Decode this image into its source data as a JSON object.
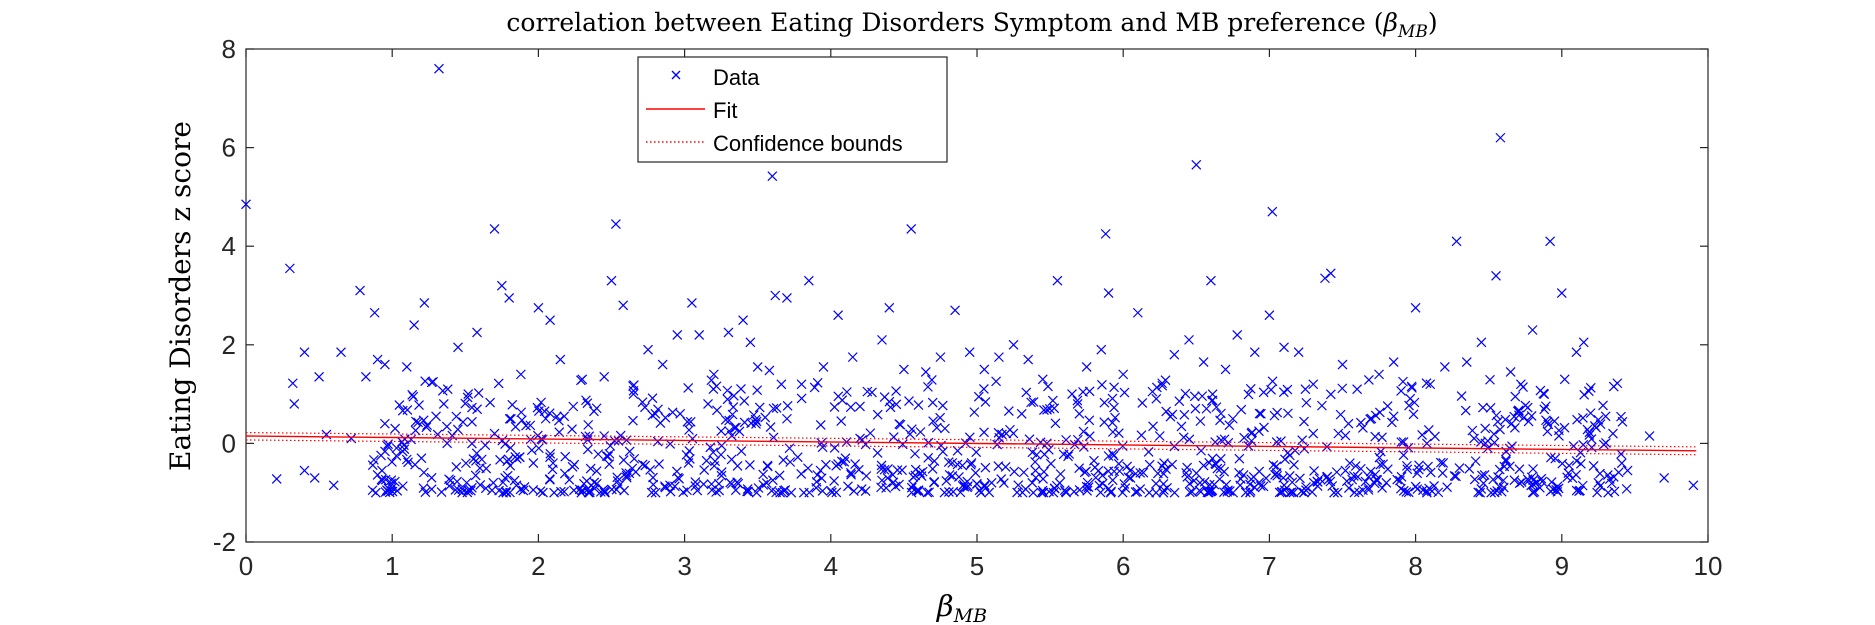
{
  "chart_data": {
    "type": "scatter",
    "title": {
      "prefix": "correlation between Eating Disorders Symptom and MB preference (",
      "symbol": "β",
      "subscript": "MB",
      "suffix": ")"
    },
    "xlabel": {
      "symbol": "β",
      "subscript": "MB"
    },
    "ylabel": "Eating Disorders z score",
    "xlim": [
      0,
      10
    ],
    "ylim": [
      -2,
      8
    ],
    "x_ticks": [
      0,
      1,
      2,
      3,
      4,
      5,
      6,
      7,
      8,
      9,
      10
    ],
    "y_ticks": [
      -2,
      0,
      2,
      4,
      6,
      8
    ],
    "x_tick_labels": [
      "0",
      "1",
      "2",
      "3",
      "4",
      "5",
      "6",
      "7",
      "8",
      "9",
      "10"
    ],
    "y_tick_labels": [
      "-2",
      "0",
      "2",
      "4",
      "6",
      "8"
    ],
    "grid": false,
    "legend": {
      "placement": "top-center",
      "entries": [
        {
          "label": "Data",
          "marker": "x",
          "color": "#0000ff"
        },
        {
          "label": "Fit",
          "line": "solid",
          "color": "#ff0000"
        },
        {
          "label": "Confidence bounds",
          "line": "dotted",
          "color": "#ff0000"
        }
      ]
    },
    "series": [
      {
        "name": "Data",
        "marker": "x",
        "color": "#0000ff",
        "points": [
          [
            0.0,
            4.85
          ],
          [
            0.21,
            -0.72
          ],
          [
            0.3,
            3.55
          ],
          [
            0.32,
            1.22
          ],
          [
            0.33,
            0.8
          ],
          [
            0.4,
            1.85
          ],
          [
            0.47,
            -0.7
          ],
          [
            0.5,
            1.35
          ],
          [
            0.55,
            0.18
          ],
          [
            0.6,
            -0.85
          ],
          [
            0.65,
            1.85
          ],
          [
            0.72,
            0.1
          ],
          [
            0.78,
            3.1
          ],
          [
            0.82,
            1.35
          ],
          [
            0.88,
            2.65
          ],
          [
            0.9,
            1.7
          ],
          [
            0.93,
            -0.55
          ],
          [
            0.95,
            1.6
          ],
          [
            1.02,
            0.3
          ],
          [
            1.1,
            1.55
          ],
          [
            1.15,
            2.4
          ],
          [
            1.22,
            2.85
          ],
          [
            1.28,
            1.25
          ],
          [
            1.32,
            7.6
          ],
          [
            1.38,
            1.1
          ],
          [
            1.45,
            1.95
          ],
          [
            1.52,
            1.0
          ],
          [
            1.58,
            2.25
          ],
          [
            1.7,
            4.35
          ],
          [
            1.75,
            3.2
          ],
          [
            1.8,
            2.95
          ],
          [
            1.88,
            1.4
          ],
          [
            2.0,
            2.75
          ],
          [
            2.08,
            2.5
          ],
          [
            2.15,
            1.7
          ],
          [
            2.3,
            1.3
          ],
          [
            2.38,
            0.65
          ],
          [
            2.45,
            1.35
          ],
          [
            2.5,
            3.3
          ],
          [
            2.53,
            4.45
          ],
          [
            2.58,
            2.8
          ],
          [
            2.65,
            1.0
          ],
          [
            2.75,
            1.9
          ],
          [
            2.85,
            1.6
          ],
          [
            2.95,
            2.2
          ],
          [
            3.05,
            2.85
          ],
          [
            3.1,
            2.2
          ],
          [
            3.2,
            1.4
          ],
          [
            3.3,
            2.25
          ],
          [
            3.4,
            2.5
          ],
          [
            3.45,
            2.05
          ],
          [
            3.5,
            1.55
          ],
          [
            3.58,
            1.48
          ],
          [
            3.6,
            5.42
          ],
          [
            3.62,
            3.0
          ],
          [
            3.7,
            2.95
          ],
          [
            3.8,
            1.2
          ],
          [
            3.85,
            3.3
          ],
          [
            3.95,
            1.55
          ],
          [
            4.05,
            2.6
          ],
          [
            4.15,
            1.75
          ],
          [
            4.25,
            1.05
          ],
          [
            4.35,
            2.1
          ],
          [
            4.4,
            2.75
          ],
          [
            4.5,
            1.5
          ],
          [
            4.55,
            4.35
          ],
          [
            4.65,
            1.45
          ],
          [
            4.75,
            1.75
          ],
          [
            4.85,
            2.7
          ],
          [
            4.95,
            1.85
          ],
          [
            5.05,
            1.5
          ],
          [
            5.15,
            1.75
          ],
          [
            5.25,
            2.0
          ],
          [
            5.35,
            1.7
          ],
          [
            5.45,
            1.3
          ],
          [
            5.55,
            3.3
          ],
          [
            5.65,
            1.0
          ],
          [
            5.75,
            1.55
          ],
          [
            5.85,
            1.9
          ],
          [
            5.88,
            4.25
          ],
          [
            5.9,
            3.05
          ],
          [
            6.0,
            1.4
          ],
          [
            6.1,
            2.65
          ],
          [
            6.2,
            1.05
          ],
          [
            6.35,
            1.8
          ],
          [
            6.45,
            2.1
          ],
          [
            6.5,
            5.65
          ],
          [
            6.55,
            1.65
          ],
          [
            6.6,
            3.3
          ],
          [
            6.7,
            1.5
          ],
          [
            6.78,
            2.2
          ],
          [
            6.9,
            1.85
          ],
          [
            7.0,
            2.6
          ],
          [
            7.02,
            4.7
          ],
          [
            7.1,
            1.95
          ],
          [
            7.2,
            1.85
          ],
          [
            7.3,
            1.2
          ],
          [
            7.38,
            3.35
          ],
          [
            7.42,
            3.45
          ],
          [
            7.5,
            1.6
          ],
          [
            7.6,
            1.1
          ],
          [
            7.75,
            1.4
          ],
          [
            7.85,
            1.65
          ],
          [
            8.0,
            2.75
          ],
          [
            8.1,
            1.2
          ],
          [
            8.2,
            1.55
          ],
          [
            8.28,
            4.1
          ],
          [
            8.35,
            1.65
          ],
          [
            8.45,
            2.05
          ],
          [
            8.55,
            3.4
          ],
          [
            8.58,
            6.2
          ],
          [
            8.65,
            1.45
          ],
          [
            8.72,
            1.2
          ],
          [
            8.8,
            2.3
          ],
          [
            8.88,
            1.0
          ],
          [
            8.92,
            4.1
          ],
          [
            9.0,
            3.05
          ],
          [
            9.02,
            1.3
          ],
          [
            9.1,
            1.85
          ],
          [
            9.15,
            2.05
          ],
          [
            9.3,
            0.55
          ],
          [
            9.38,
            1.22
          ],
          [
            9.6,
            0.15
          ],
          [
            9.7,
            -0.7
          ],
          [
            9.9,
            -0.85
          ],
          [
            0.4,
            -0.55
          ],
          [
            1.0,
            -0.9
          ],
          [
            1.2,
            -0.3
          ],
          [
            1.4,
            -0.75
          ],
          [
            1.6,
            -0.5
          ],
          [
            1.85,
            -0.85
          ],
          [
            2.1,
            -0.4
          ],
          [
            2.3,
            -0.95
          ],
          [
            2.6,
            -0.6
          ],
          [
            2.9,
            -0.85
          ],
          [
            3.15,
            -0.35
          ],
          [
            3.35,
            -0.95
          ],
          [
            3.65,
            -0.65
          ],
          [
            3.9,
            -0.9
          ],
          [
            4.1,
            -0.3
          ],
          [
            4.35,
            -0.75
          ],
          [
            4.6,
            -0.95
          ],
          [
            4.9,
            -0.45
          ],
          [
            5.1,
            -0.8
          ],
          [
            5.4,
            -0.55
          ],
          [
            5.6,
            -0.95
          ],
          [
            5.8,
            -0.35
          ],
          [
            6.05,
            -0.7
          ],
          [
            6.3,
            -0.9
          ],
          [
            6.55,
            -0.45
          ],
          [
            6.8,
            -0.85
          ],
          [
            7.05,
            -0.6
          ],
          [
            7.25,
            -0.95
          ],
          [
            7.55,
            -0.4
          ],
          [
            7.8,
            -0.8
          ],
          [
            8.05,
            -0.95
          ],
          [
            8.3,
            -0.5
          ],
          [
            8.6,
            -0.75
          ],
          [
            8.85,
            -0.9
          ],
          [
            9.05,
            -0.45
          ],
          [
            9.25,
            -0.8
          ],
          [
            9.45,
            -0.55
          ],
          [
            0.95,
            0.4
          ],
          [
            1.3,
            0.55
          ],
          [
            1.7,
            0.2
          ],
          [
            2.05,
            0.5
          ],
          [
            2.45,
            0.15
          ],
          [
            2.8,
            0.6
          ],
          [
            3.25,
            0.25
          ],
          [
            3.7,
            0.5
          ],
          [
            4.2,
            0.1
          ],
          [
            4.7,
            0.45
          ],
          [
            5.2,
            0.2
          ],
          [
            5.7,
            0.6
          ],
          [
            6.25,
            0.15
          ],
          [
            6.75,
            0.5
          ],
          [
            7.3,
            0.2
          ],
          [
            7.85,
            0.55
          ],
          [
            8.4,
            0.1
          ],
          [
            8.95,
            0.45
          ],
          [
            9.35,
            0.2
          ]
        ]
      }
    ],
    "fit": {
      "x": [
        0,
        9.92
      ],
      "y": [
        0.15,
        -0.15
      ],
      "color": "#ff0000"
    },
    "confidence_bounds": {
      "upper": {
        "x": [
          0,
          9.92
        ],
        "y": [
          0.22,
          -0.07
        ]
      },
      "lower": {
        "x": [
          0,
          9.92
        ],
        "y": [
          0.07,
          -0.23
        ]
      },
      "color": "#ff0000"
    }
  }
}
